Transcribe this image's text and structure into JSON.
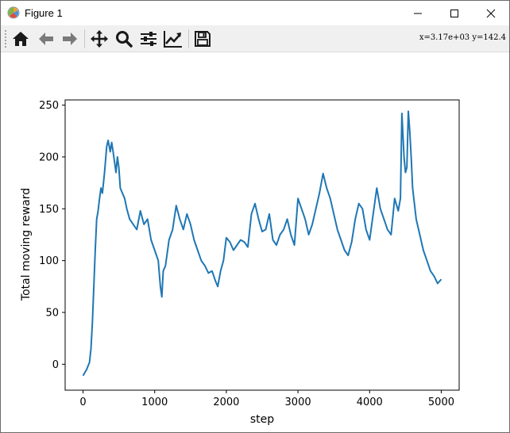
{
  "window": {
    "title": "Figure 1",
    "controls": [
      "minimize",
      "maximize",
      "close"
    ]
  },
  "toolbar": {
    "buttons": [
      {
        "name": "home",
        "icon": "home-icon"
      },
      {
        "name": "back",
        "icon": "arrow-left-icon"
      },
      {
        "name": "forward",
        "icon": "arrow-right-icon"
      },
      {
        "name": "pan",
        "icon": "move-icon"
      },
      {
        "name": "zoom",
        "icon": "magnifier-icon"
      },
      {
        "name": "configure-subplots",
        "icon": "sliders-icon"
      },
      {
        "name": "edit-axis",
        "icon": "line-chart-icon"
      },
      {
        "name": "save",
        "icon": "floppy-disk-icon"
      }
    ],
    "coordinates": "x=3.17e+03  y=142.4"
  },
  "colors": {
    "line": "#1f77b4",
    "toolbar_bg": "#f0f0f0",
    "axis": "#000000"
  },
  "chart_data": {
    "type": "line",
    "title": "",
    "xlabel": "step",
    "ylabel": "Total moving reward",
    "xlim": [
      -250,
      5250
    ],
    "ylim": [
      -25,
      255
    ],
    "xticks": [
      0,
      1000,
      2000,
      3000,
      4000,
      5000
    ],
    "yticks": [
      0,
      50,
      100,
      150,
      200,
      250
    ],
    "grid": false,
    "legend": "none",
    "series": [
      {
        "x": [
          0,
          50,
          90,
          110,
          130,
          150,
          170,
          190,
          210,
          230,
          250,
          270,
          300,
          330,
          350,
          380,
          400,
          420,
          440,
          460,
          480,
          500,
          520,
          550,
          580,
          610,
          650,
          700,
          750,
          800,
          850,
          900,
          950,
          1000,
          1050,
          1080,
          1100,
          1120,
          1150,
          1200,
          1250,
          1300,
          1350,
          1400,
          1450,
          1500,
          1550,
          1600,
          1650,
          1700,
          1750,
          1800,
          1850,
          1880,
          1920,
          1960,
          2000,
          2050,
          2100,
          2150,
          2200,
          2250,
          2300,
          2350,
          2400,
          2450,
          2500,
          2550,
          2600,
          2650,
          2700,
          2750,
          2800,
          2850,
          2900,
          2950,
          3000,
          3050,
          3100,
          3150,
          3200,
          3250,
          3300,
          3350,
          3400,
          3450,
          3500,
          3550,
          3600,
          3650,
          3700,
          3750,
          3800,
          3850,
          3900,
          3950,
          4000,
          4050,
          4100,
          4150,
          4200,
          4250,
          4300,
          4350,
          4400,
          4430,
          4450,
          4480,
          4500,
          4520,
          4540,
          4560,
          4580,
          4600,
          4650,
          4700,
          4750,
          4800,
          4850,
          4900,
          4950,
          5000
        ],
        "y": [
          -11,
          -5,
          2,
          15,
          40,
          75,
          110,
          140,
          148,
          160,
          170,
          165,
          185,
          210,
          216,
          205,
          214,
          205,
          195,
          185,
          200,
          190,
          170,
          165,
          160,
          150,
          140,
          135,
          130,
          148,
          135,
          140,
          120,
          110,
          100,
          75,
          65,
          90,
          95,
          120,
          130,
          153,
          140,
          130,
          145,
          135,
          120,
          110,
          100,
          95,
          88,
          90,
          80,
          75,
          90,
          100,
          122,
          118,
          110,
          115,
          120,
          118,
          113,
          145,
          155,
          140,
          128,
          130,
          145,
          120,
          115,
          125,
          130,
          140,
          125,
          115,
          160,
          150,
          140,
          125,
          135,
          150,
          165,
          184,
          170,
          160,
          145,
          130,
          120,
          110,
          105,
          118,
          140,
          155,
          150,
          130,
          120,
          145,
          170,
          150,
          140,
          130,
          125,
          160,
          148,
          160,
          242,
          200,
          185,
          190,
          244,
          225,
          200,
          170,
          140,
          125,
          110,
          100,
          90,
          85,
          78,
          82
        ]
      }
    ]
  }
}
